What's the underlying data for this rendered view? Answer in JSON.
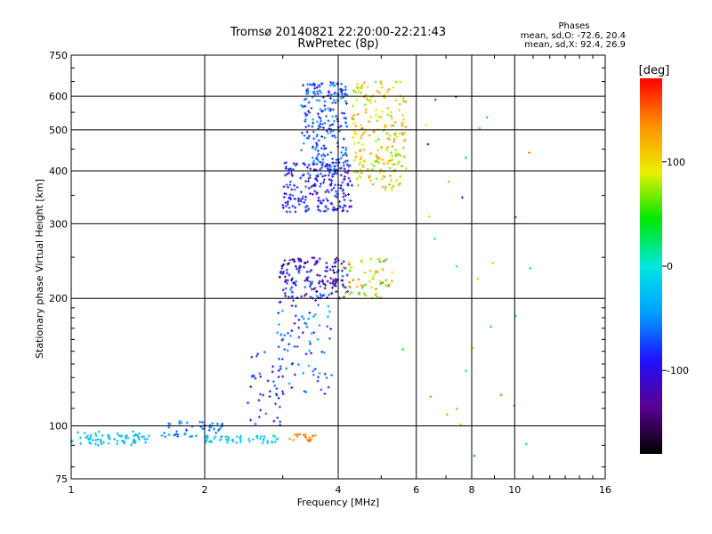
{
  "chart_data": {
    "type": "scatter",
    "title": "Tromsø 20140821 22:20:00-22:21:43",
    "subtitle": "RwPretec (8p)",
    "stats": {
      "heading": "Phases",
      "line1": "mean, sd,O: -72.6, 20.4",
      "line2": "mean, sd,X:  92.4, 26.9"
    },
    "xlabel": "Frequency [MHz]",
    "ylabel": "Stationary phase Virtual Height [km]",
    "x_scale": "log2",
    "y_scale": "log",
    "xlim": [
      1,
      16
    ],
    "ylim": [
      75,
      750
    ],
    "x_ticks": [
      1,
      2,
      4,
      6,
      8,
      10,
      16
    ],
    "y_ticks": [
      75,
      100,
      200,
      300,
      400,
      500,
      600,
      750
    ],
    "grid": true,
    "colorbar": {
      "label": "[deg]",
      "range": [
        -180,
        180
      ],
      "ticks": [
        100,
        0,
        -100
      ],
      "colors": [
        "#000000",
        "#5a0090",
        "#2010ff",
        "#00a0ff",
        "#00e8e0",
        "#00e800",
        "#e8f000",
        "#ff9000",
        "#ff0000"
      ]
    },
    "point_groups": [
      {
        "x": [
          1.0,
          1.5
        ],
        "y": [
          90,
          97
        ],
        "phase": [
          -35,
          -25
        ],
        "count": 70
      },
      {
        "x": [
          1.6,
          2.2
        ],
        "y": [
          94,
          103
        ],
        "phase": [
          -70,
          -45
        ],
        "count": 50
      },
      {
        "x": [
          2.0,
          2.95
        ],
        "y": [
          91,
          95
        ],
        "phase": [
          -25,
          -10
        ],
        "count": 50
      },
      {
        "x": [
          3.1,
          3.55
        ],
        "y": [
          92,
          96
        ],
        "phase": [
          120,
          160
        ],
        "count": 20
      },
      {
        "x": [
          2.5,
          3.0
        ],
        "y": [
          100,
          150
        ],
        "phase": [
          -120,
          -60
        ],
        "count": 40
      },
      {
        "x": [
          2.9,
          3.9
        ],
        "y": [
          118,
          210
        ],
        "phase": [
          -100,
          -30
        ],
        "count": 90
      },
      {
        "x": [
          2.95,
          4.2
        ],
        "y": [
          200,
          250
        ],
        "phase": [
          -160,
          -60
        ],
        "count": 160
      },
      {
        "x": [
          4.1,
          5.3
        ],
        "y": [
          200,
          250
        ],
        "phase": [
          40,
          160
        ],
        "count": 60
      },
      {
        "x": [
          3.0,
          4.3
        ],
        "y": [
          320,
          420
        ],
        "phase": [
          -120,
          -60
        ],
        "count": 220
      },
      {
        "x": [
          3.3,
          4.2
        ],
        "y": [
          400,
          650
        ],
        "phase": [
          -100,
          -40
        ],
        "count": 220
      },
      {
        "x": [
          4.3,
          5.7
        ],
        "y": [
          360,
          650
        ],
        "phase": [
          60,
          140
        ],
        "count": 220
      },
      {
        "x": [
          5.5,
          11.0
        ],
        "y": [
          80,
          620
        ],
        "phase": [
          -150,
          160
        ],
        "count": 30
      }
    ]
  }
}
